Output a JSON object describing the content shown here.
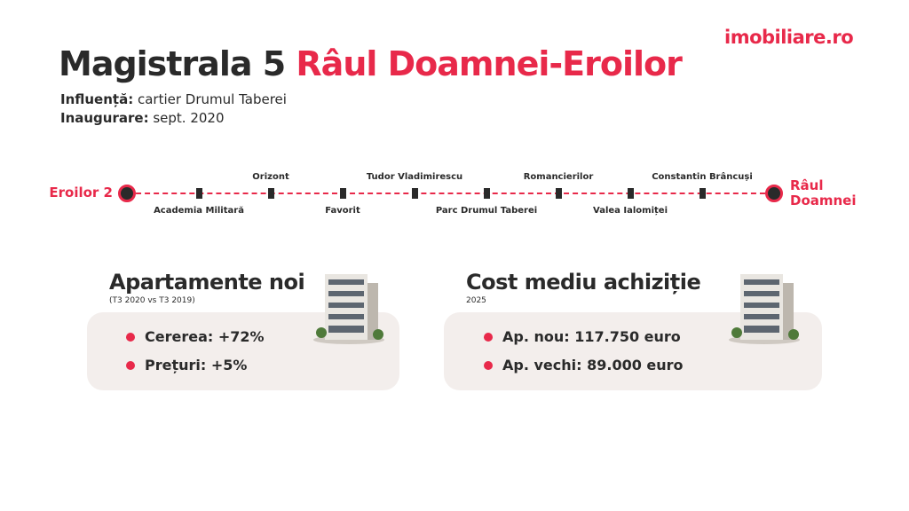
{
  "logo": "imobiliare.ro",
  "title": {
    "line": "Magistrala 5",
    "route": "Râul Doamnei-Eroilor"
  },
  "info": [
    {
      "label": "Influență:",
      "text": "cartier Drumul Taberei"
    },
    {
      "label": "Inaugurare:",
      "text": "sept. 2020"
    }
  ],
  "stations": [
    "Eroilor 2",
    "Academia Militară",
    "Orizont",
    "Favorit",
    "Tudor Vladimirescu",
    "Parc Drumul Taberei",
    "Romancierilor",
    "Valea Ialomiței",
    "Constantin Brâncuși",
    "Râul Doamnei"
  ],
  "cards": [
    {
      "title": "Apartamente noi",
      "subtitle": "(T3 2020 vs T3 2019)",
      "items": [
        "Cererea: +72%",
        "Prețuri: +5%"
      ]
    },
    {
      "title": "Cost mediu achiziție",
      "subtitle": "2025",
      "items": [
        "Ap. nou: 117.750 euro",
        "Ap. vechi: 89.000 euro"
      ]
    }
  ]
}
